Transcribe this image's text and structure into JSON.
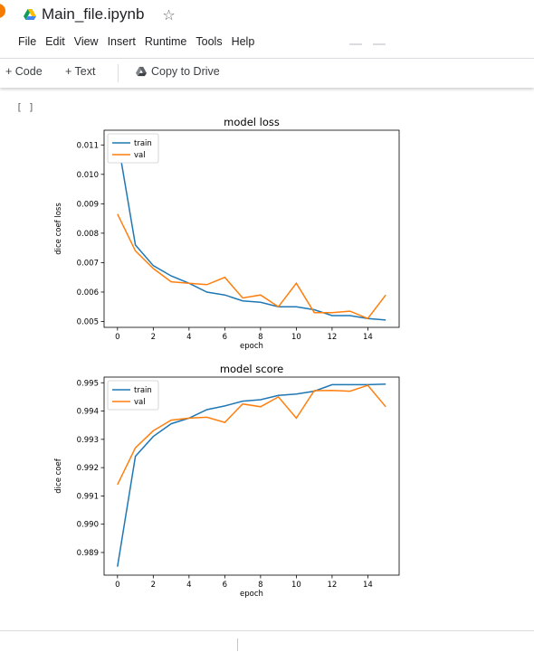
{
  "header": {
    "title": "Main_file.ipynb",
    "star_icon": "star-outline-icon",
    "drive_icon": "google-drive-icon"
  },
  "menu": [
    "File",
    "Edit",
    "View",
    "Insert",
    "Runtime",
    "Tools",
    "Help"
  ],
  "toolbar": {
    "add_code": "+ Code",
    "add_text": "+ Text",
    "copy_to_drive": "Copy to Drive"
  },
  "cell": {
    "prompt": "[ ]"
  },
  "colors": {
    "train": "#1f77b4",
    "val": "#ff7f0e"
  },
  "chart_data": [
    {
      "type": "line",
      "title": "model loss",
      "xlabel": "epoch",
      "ylabel": "dice coef loss",
      "x": [
        0,
        1,
        2,
        3,
        4,
        5,
        6,
        7,
        8,
        9,
        10,
        11,
        12,
        13,
        14,
        15
      ],
      "xticks": [
        0,
        2,
        4,
        6,
        8,
        10,
        12,
        14
      ],
      "xlim": [
        -0.75,
        15.75
      ],
      "yticks": [
        0.005,
        0.006,
        0.007,
        0.008,
        0.009,
        0.01,
        0.011
      ],
      "ytick_labels": [
        "0.005",
        "0.006",
        "0.007",
        "0.008",
        "0.009",
        "0.010",
        "0.011"
      ],
      "ylim": [
        0.0048,
        0.0115
      ],
      "legend": "upper-left",
      "series": [
        {
          "name": "train",
          "values": [
            0.0112,
            0.0076,
            0.0069,
            0.00655,
            0.0063,
            0.006,
            0.0059,
            0.0057,
            0.00565,
            0.0055,
            0.0055,
            0.0054,
            0.0052,
            0.0052,
            0.0051,
            0.00505
          ]
        },
        {
          "name": "val",
          "values": [
            0.00865,
            0.0074,
            0.0068,
            0.00635,
            0.0063,
            0.00625,
            0.0065,
            0.0058,
            0.0059,
            0.0055,
            0.0063,
            0.0053,
            0.0053,
            0.00535,
            0.0051,
            0.0059
          ]
        }
      ]
    },
    {
      "type": "line",
      "title": "model score",
      "xlabel": "epoch",
      "ylabel": "dice coef",
      "x": [
        0,
        1,
        2,
        3,
        4,
        5,
        6,
        7,
        8,
        9,
        10,
        11,
        12,
        13,
        14,
        15
      ],
      "xticks": [
        0,
        2,
        4,
        6,
        8,
        10,
        12,
        14
      ],
      "xlim": [
        -0.75,
        15.75
      ],
      "yticks": [
        0.989,
        0.99,
        0.991,
        0.992,
        0.993,
        0.994,
        0.995
      ],
      "ytick_labels": [
        "0.989",
        "0.990",
        "0.991",
        "0.992",
        "0.993",
        "0.994",
        "0.995"
      ],
      "ylim": [
        0.9882,
        0.9952
      ],
      "legend": "upper-left",
      "series": [
        {
          "name": "train",
          "values": [
            0.9885,
            0.9924,
            0.9931,
            0.99355,
            0.99375,
            0.99405,
            0.99418,
            0.99435,
            0.9944,
            0.99455,
            0.9946,
            0.9947,
            0.99493,
            0.99493,
            0.99493,
            0.99495
          ]
        },
        {
          "name": "val",
          "values": [
            0.9914,
            0.9927,
            0.9933,
            0.99368,
            0.99375,
            0.99378,
            0.9936,
            0.99425,
            0.99415,
            0.9945,
            0.99375,
            0.99472,
            0.99473,
            0.9947,
            0.99491,
            0.99415
          ]
        }
      ]
    }
  ]
}
